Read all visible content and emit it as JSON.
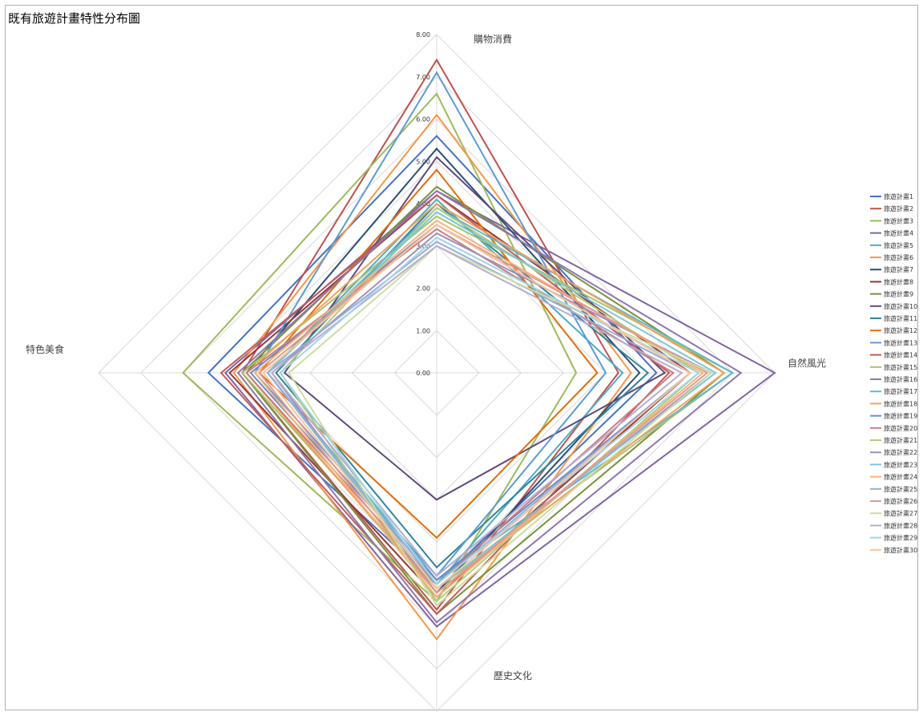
{
  "chart_data": {
    "type": "radar",
    "title": "既有旅遊計畫特性分布圖",
    "axes": [
      "購物消費",
      "自然風光",
      "歷史文化",
      "特色美食"
    ],
    "rlim": [
      0,
      8
    ],
    "ticks": [
      "0.00",
      "1.00",
      "2.00",
      "3.00",
      "4.00",
      "5.00",
      "6.00",
      "7.00",
      "8.00"
    ],
    "legend_position": "right",
    "series": [
      {
        "name": "旅遊計畫1",
        "color": "#4472C4",
        "values": [
          5.6,
          5.2,
          5.0,
          5.4
        ]
      },
      {
        "name": "旅遊計畫2",
        "color": "#C0504D",
        "values": [
          7.4,
          4.3,
          5.6,
          4.6
        ]
      },
      {
        "name": "旅遊計畫3",
        "color": "#9BBB59",
        "values": [
          6.6,
          3.3,
          5.4,
          6.0
        ]
      },
      {
        "name": "旅遊計畫4",
        "color": "#8064A2",
        "values": [
          4.3,
          8.0,
          6.0,
          5.0
        ]
      },
      {
        "name": "旅遊計畫5",
        "color": "#4BACC6",
        "values": [
          4.1,
          4.4,
          5.0,
          4.0
        ]
      },
      {
        "name": "旅遊計畫6",
        "color": "#F79646",
        "values": [
          6.1,
          4.6,
          6.3,
          4.8
        ]
      },
      {
        "name": "旅遊計畫7",
        "color": "#2C4D75",
        "values": [
          5.3,
          4.8,
          5.2,
          4.5
        ]
      },
      {
        "name": "旅遊計畫8",
        "color": "#953735",
        "values": [
          4.2,
          6.0,
          5.3,
          4.9
        ]
      },
      {
        "name": "旅遊計畫9",
        "color": "#77933C",
        "values": [
          4.4,
          6.8,
          5.7,
          4.6
        ]
      },
      {
        "name": "旅遊計畫10",
        "color": "#5F497A",
        "values": [
          5.1,
          5.4,
          3.0,
          3.6
        ]
      },
      {
        "name": "旅遊計畫11",
        "color": "#31859C",
        "values": [
          4.0,
          5.0,
          4.6,
          3.8
        ]
      },
      {
        "name": "旅遊計畫12",
        "color": "#E36C09",
        "values": [
          4.8,
          3.8,
          3.9,
          4.2
        ]
      },
      {
        "name": "旅遊計畫13",
        "color": "#5B9BD5",
        "values": [
          7.1,
          4.0,
          4.8,
          4.3
        ]
      },
      {
        "name": "旅遊計畫14",
        "color": "#C55A5A",
        "values": [
          4.2,
          5.5,
          5.7,
          5.1
        ]
      },
      {
        "name": "旅遊計畫15",
        "color": "#A9C26A",
        "values": [
          3.7,
          7.0,
          5.1,
          4.6
        ]
      },
      {
        "name": "旅遊計畫16",
        "color": "#8E76B0",
        "values": [
          4.3,
          7.2,
          5.9,
          4.7
        ]
      },
      {
        "name": "旅遊計畫17",
        "color": "#5FB9D0",
        "values": [
          3.9,
          7.0,
          4.9,
          4.0
        ]
      },
      {
        "name": "旅遊計畫18",
        "color": "#F5A05A",
        "values": [
          4.0,
          6.8,
          5.2,
          4.5
        ]
      },
      {
        "name": "旅遊計畫19",
        "color": "#6A8AC8",
        "values": [
          3.5,
          6.0,
          4.9,
          4.4
        ]
      },
      {
        "name": "旅遊計畫20",
        "color": "#C88080",
        "values": [
          3.4,
          5.6,
          5.0,
          4.5
        ]
      },
      {
        "name": "旅遊計畫21",
        "color": "#B4CC80",
        "values": [
          3.9,
          6.2,
          5.4,
          3.7
        ]
      },
      {
        "name": "旅遊計畫22",
        "color": "#9F8FBF",
        "values": [
          3.3,
          6.5,
          5.2,
          3.9
        ]
      },
      {
        "name": "旅遊計畫23",
        "color": "#7CC6D8",
        "values": [
          3.8,
          6.6,
          5.1,
          4.0
        ]
      },
      {
        "name": "旅遊計畫24",
        "color": "#F7B27A",
        "values": [
          3.6,
          6.3,
          5.3,
          4.3
        ]
      },
      {
        "name": "旅遊計畫25",
        "color": "#95ADD8",
        "values": [
          3.1,
          6.0,
          5.0,
          4.0
        ]
      },
      {
        "name": "旅遊計畫26",
        "color": "#E49A8A",
        "values": [
          3.5,
          6.4,
          5.2,
          4.2
        ]
      },
      {
        "name": "旅遊計畫27",
        "color": "#CCDCA0",
        "values": [
          3.0,
          6.5,
          5.5,
          3.5
        ]
      },
      {
        "name": "旅遊計畫28",
        "color": "#B8ACCC",
        "values": [
          3.0,
          5.8,
          4.8,
          3.9
        ]
      },
      {
        "name": "旅遊計畫29",
        "color": "#A0D4E4",
        "values": [
          3.2,
          6.2,
          5.0,
          3.7
        ]
      },
      {
        "name": "旅遊計畫30",
        "color": "#F8C498",
        "values": [
          3.5,
          6.0,
          5.1,
          4.1
        ]
      }
    ]
  }
}
